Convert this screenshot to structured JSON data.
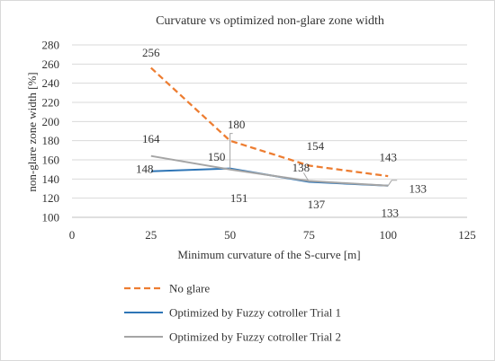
{
  "chart_data": {
    "type": "line",
    "title": "Curvature vs optimized non-glare zone width",
    "xlabel": "Minimum curvature of the S-curve [m]",
    "ylabel": "non-glare zone width [%]",
    "xlim": [
      0,
      125
    ],
    "ylim": [
      100,
      280
    ],
    "x_ticks": [
      0,
      25,
      50,
      75,
      100,
      125
    ],
    "y_ticks": [
      100,
      120,
      140,
      160,
      180,
      200,
      220,
      240,
      260,
      280
    ],
    "grid": "horizontal",
    "legend_position": "bottom",
    "x": [
      25,
      50,
      75,
      100
    ],
    "series": [
      {
        "name": "No glare",
        "values": [
          256,
          180,
          154,
          143
        ],
        "color": "#ed7d31",
        "dash": "dashed"
      },
      {
        "name": "Optimized by Fuzzy cotroller Trial 1",
        "values": [
          148,
          151,
          137,
          133
        ],
        "color": "#2e75b6",
        "dash": "solid"
      },
      {
        "name": "Optimized by Fuzzy cotroller Trial 2",
        "values": [
          164,
          150,
          138,
          133
        ],
        "color": "#a5a5a5",
        "dash": "solid"
      }
    ],
    "data_labels": [
      {
        "text": "256",
        "series": 0,
        "x": 25,
        "y": 256
      },
      {
        "text": "180",
        "series": 0,
        "x": 50,
        "y": 180
      },
      {
        "text": "154",
        "series": 0,
        "x": 75,
        "y": 154
      },
      {
        "text": "143",
        "series": 0,
        "x": 100,
        "y": 143
      },
      {
        "text": "148",
        "series": 1,
        "x": 25,
        "y": 148
      },
      {
        "text": "151",
        "series": 1,
        "x": 50,
        "y": 151
      },
      {
        "text": "137",
        "series": 1,
        "x": 75,
        "y": 137
      },
      {
        "text": "133",
        "series": 1,
        "x": 100,
        "y": 133
      },
      {
        "text": "164",
        "series": 2,
        "x": 25,
        "y": 164
      },
      {
        "text": "150",
        "series": 2,
        "x": 50,
        "y": 150
      },
      {
        "text": "138",
        "series": 2,
        "x": 75,
        "y": 138
      },
      {
        "text": "133",
        "series": 2,
        "x": 100,
        "y": 133
      }
    ]
  }
}
